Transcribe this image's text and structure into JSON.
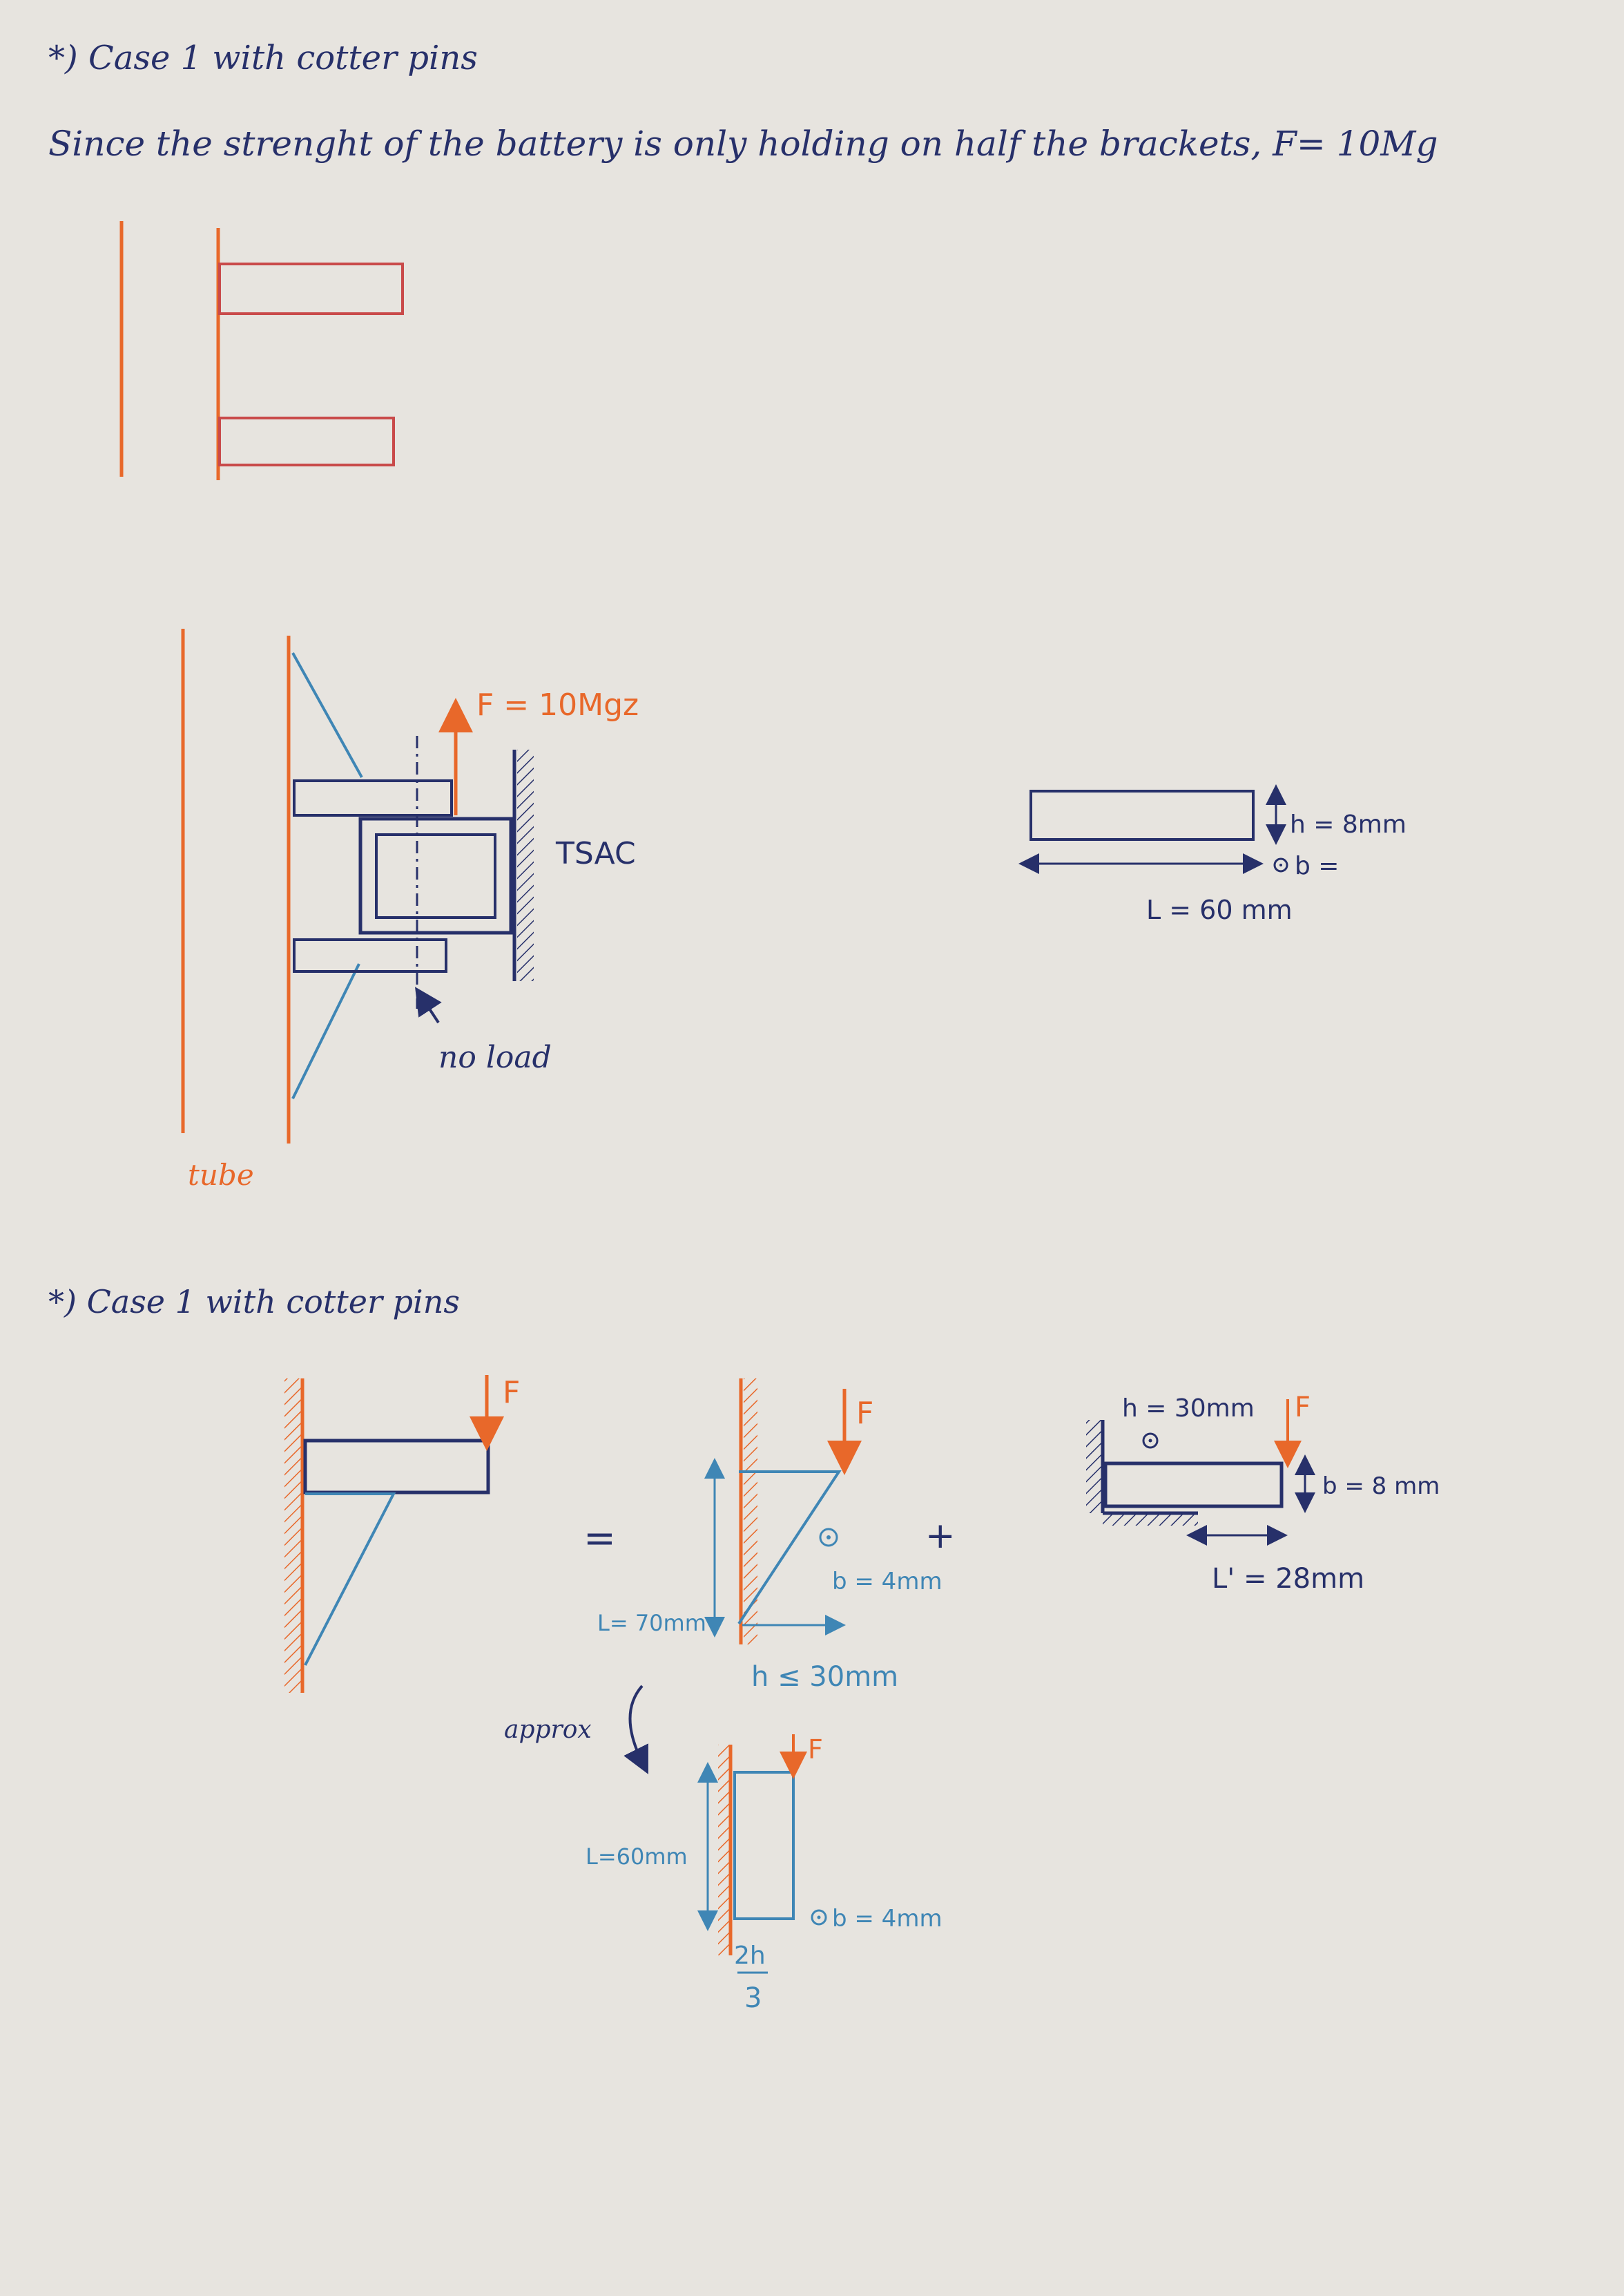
{
  "page": {
    "header1": "*) Case 1 with cotter pins",
    "sentence": "Since the strenght of the battery is only holding on half the brackets, F= 10Mg",
    "header2": "*) Case 1 with cotter pins"
  },
  "fig2": {
    "force": "F = 10Mgz",
    "tsac": "TSAC",
    "noload": "no load",
    "tube": "tube"
  },
  "beam1": {
    "h": "h = 8mm",
    "b": "b =",
    "L": "L = 60 mm"
  },
  "fig3": {
    "F": "F",
    "eq": "=",
    "plus": "+",
    "F2": "F",
    "b": "b = 4mm",
    "L": "L= 70mm",
    "hcond": "h ≤ 30mm",
    "approx": "approx",
    "F3": "F",
    "L2": "L=60mm",
    "b2": "b = 4mm",
    "frac_num": "2h",
    "frac_den": "3"
  },
  "beam2": {
    "h": "h = 30mm",
    "F": "F",
    "b": "b = 8 mm",
    "L": "L' = 28mm"
  },
  "colors": {
    "paper": "#e7e4df",
    "orange": "#e8682a",
    "red": "#c94a4a",
    "navy": "#27306a",
    "blue": "#3f86b5"
  }
}
